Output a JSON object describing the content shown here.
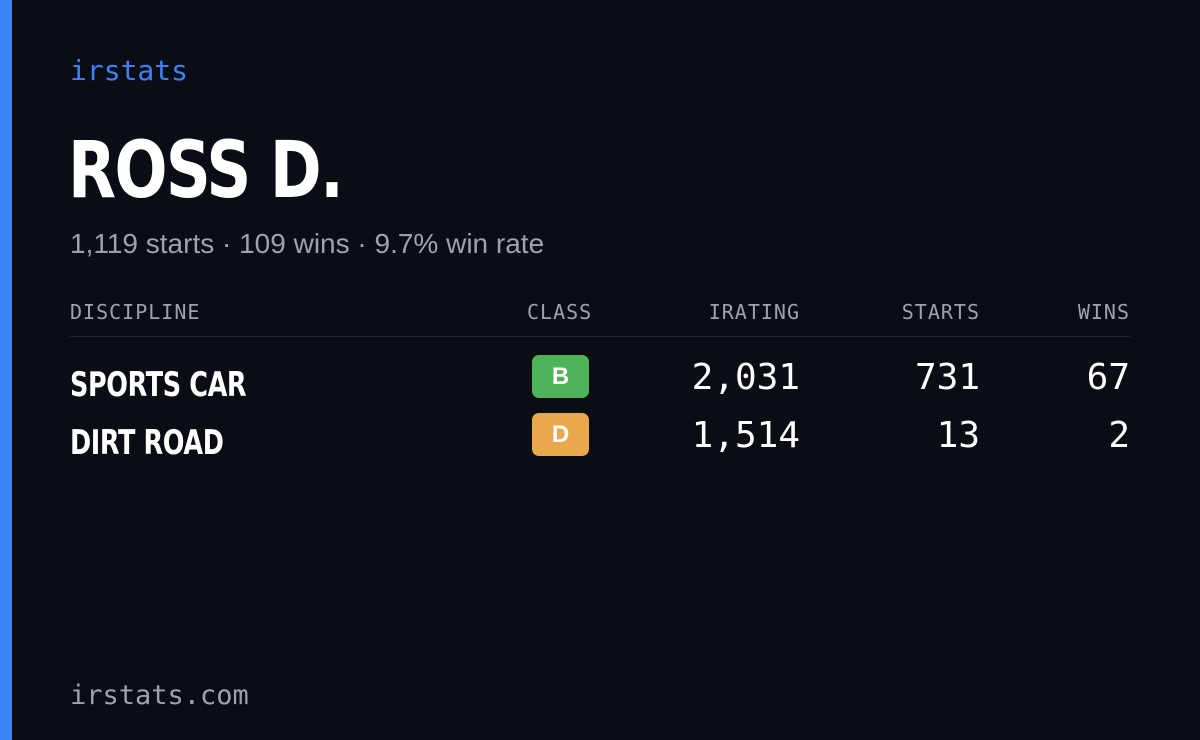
{
  "brand": "irstats",
  "driver": {
    "name": "ROSS D.",
    "summary": "1,119 starts · 109 wins · 9.7% win rate"
  },
  "table": {
    "headers": {
      "discipline": "DISCIPLINE",
      "class": "CLASS",
      "irating": "IRATING",
      "starts": "STARTS",
      "wins": "WINS"
    },
    "rows": [
      {
        "discipline": "SPORTS CAR",
        "class": "B",
        "class_color": "#4fb35a",
        "irating": "2,031",
        "starts": "731",
        "wins": "67"
      },
      {
        "discipline": "DIRT ROAD",
        "class": "D",
        "class_color": "#e9a84c",
        "irating": "1,514",
        "starts": "13",
        "wins": "2"
      }
    ]
  },
  "footer": {
    "url": "irstats.com"
  },
  "colors": {
    "background": "#0a0d14",
    "accent": "#3b82f6",
    "muted_text": "#9ca3af"
  }
}
